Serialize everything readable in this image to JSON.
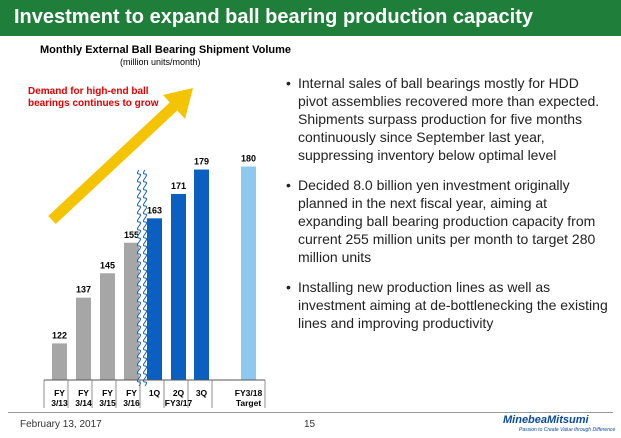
{
  "slide": {
    "title": "Investment to expand ball bearing production capacity",
    "footer_date": "February 13, 2017",
    "page_number": "15",
    "logo": "MinebeaMitsumi",
    "tagline": "Passion to Create Value through Difference",
    "accent_color": "#1f7f3a"
  },
  "bullets": [
    "Internal sales of ball bearings mostly for HDD pivot assemblies recovered more than expected. Shipments surpass production for five months continuously since September last year, suppressing inventory below optimal level",
    "Decided 8.0 billion yen investment originally planned in the next fiscal year, aiming at expanding ball bearing production capacity from current 255 million units per month to target 280 million units",
    "Installing new production lines as well as investment aiming at de-bottlenecking the existing lines and improving productivity"
  ],
  "chart_data": {
    "type": "bar",
    "title": "Monthly External Ball Bearing Shipment Volume",
    "subtitle": "(million units/month)",
    "annotation": "Demand for high-end ball bearings continues to grow",
    "categories": [
      [
        "FY",
        "3/13"
      ],
      [
        "FY",
        "3/14"
      ],
      [
        "FY",
        "3/15"
      ],
      [
        "FY",
        "3/16"
      ],
      [
        "1Q"
      ],
      [
        "2Q"
      ],
      [
        "3Q"
      ],
      [
        "FY3/18",
        "Target"
      ]
    ],
    "group_label": "FY3/17",
    "values": [
      122,
      137,
      145,
      155,
      163,
      171,
      179,
      180
    ],
    "colors": [
      "#a6a6a6",
      "#a6a6a6",
      "#a6a6a6",
      "#a6a6a6",
      "#0b5fc0",
      "#0b5fc0",
      "#0b5fc0",
      "#8fc8ef"
    ],
    "axis_break": true,
    "arrow_color": "#f5c400",
    "annotation_color": "#e00000"
  }
}
